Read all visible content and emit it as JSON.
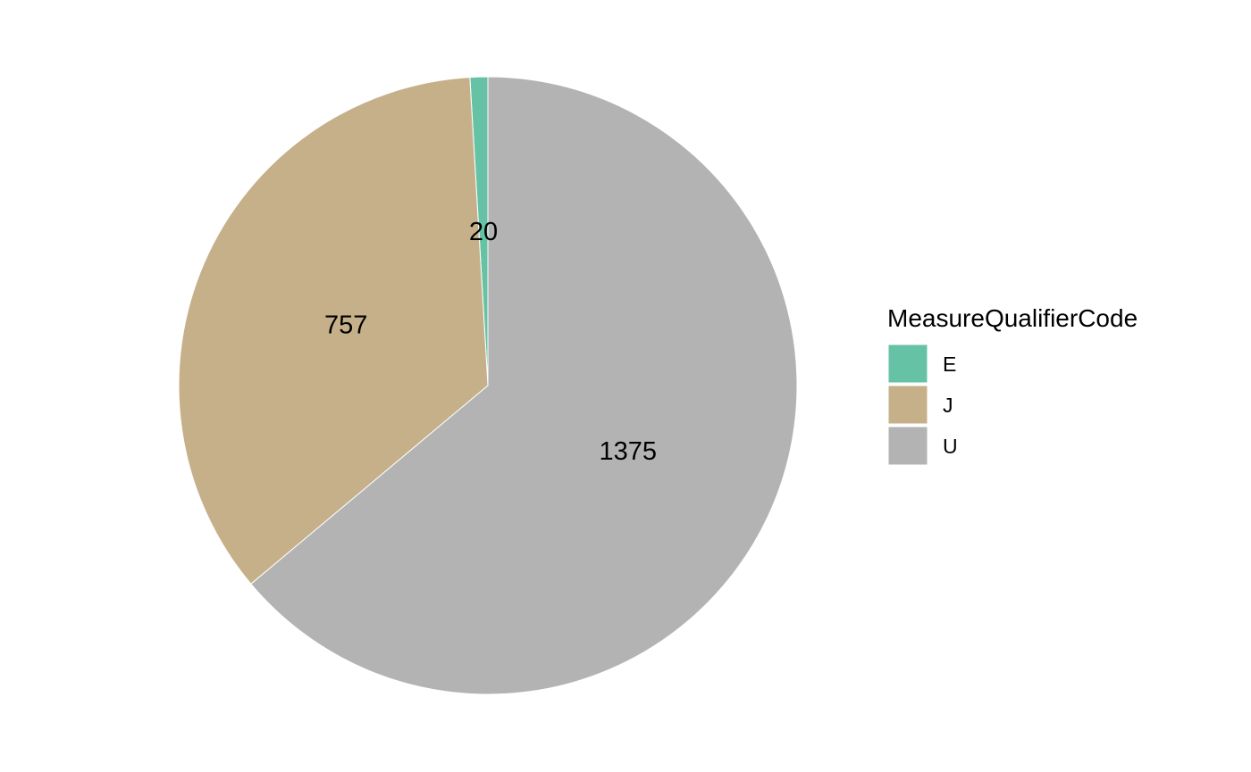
{
  "chart_data": {
    "type": "pie",
    "title": "",
    "legend": {
      "title": "MeasureQualifierCode",
      "placement": "right"
    },
    "slices": [
      {
        "label": "E",
        "value": 20,
        "color": "#66C2A5",
        "display": "20"
      },
      {
        "label": "J",
        "value": 757,
        "color": "#C6B08A",
        "display": "757"
      },
      {
        "label": "U",
        "value": 1375,
        "color": "#B3B3B3",
        "display": "1375"
      }
    ],
    "direction": "counterclockwise",
    "start": "top"
  }
}
